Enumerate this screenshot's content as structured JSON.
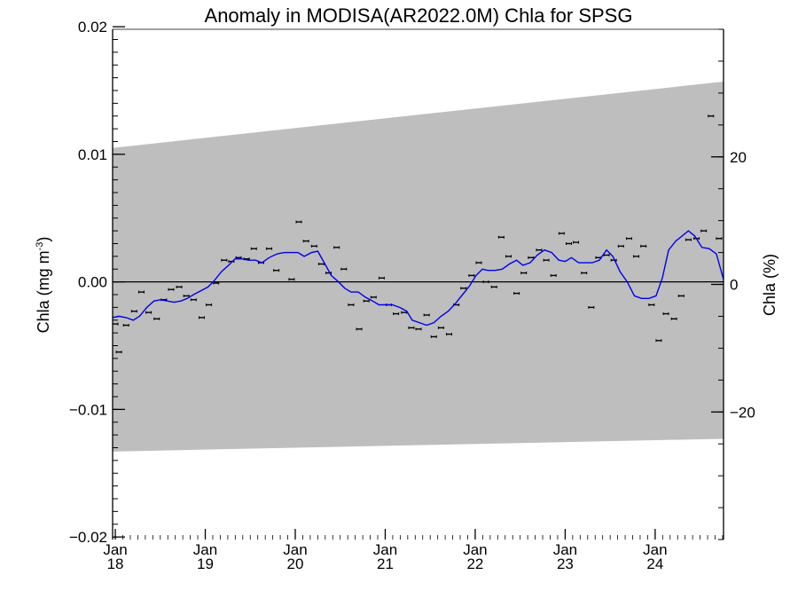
{
  "chart_data": {
    "type": "line",
    "title": "Anomaly in MODISA(AR2022.0M) Chla for SPSG",
    "ylabel_left": "Chla (mg m",
    "ylabel_left_sup": "-3",
    "ylabel_left_close": ")",
    "ylabel_right": "Chla (%)",
    "ylim_left": [
      -0.0202,
      0.0198
    ],
    "ylim_right": [
      -40,
      40
    ],
    "xlim": [
      2017.97,
      2024.76
    ],
    "yticks_left": [
      {
        "value": 0.02,
        "label": "0.02"
      },
      {
        "value": 0.01,
        "label": "0.01"
      },
      {
        "value": 0.0,
        "label": "0.00"
      },
      {
        "value": -0.01,
        "label": "−0.01"
      },
      {
        "value": -0.02,
        "label": "−0.02"
      }
    ],
    "yticks_right": [
      {
        "value": 20,
        "label": "20"
      },
      {
        "value": 0,
        "label": "0"
      },
      {
        "value": -20,
        "label": "−20"
      }
    ],
    "xticks": [
      {
        "value": 2018.0,
        "month": "Jan",
        "year": "18"
      },
      {
        "value": 2019.0,
        "month": "Jan",
        "year": "19"
      },
      {
        "value": 2020.0,
        "month": "Jan",
        "year": "20"
      },
      {
        "value": 2021.0,
        "month": "Jan",
        "year": "21"
      },
      {
        "value": 2022.0,
        "month": "Jan",
        "year": "22"
      },
      {
        "value": 2023.0,
        "month": "Jan",
        "year": "23"
      },
      {
        "value": 2024.0,
        "month": "Jan",
        "year": "24"
      }
    ],
    "uncertainty_band": {
      "upper": [
        [
          2017.97,
          0.0105
        ],
        [
          2024.76,
          0.0157
        ]
      ],
      "lower": [
        [
          2017.97,
          -0.0133
        ],
        [
          2024.76,
          -0.0123
        ]
      ]
    },
    "zero_line": 0.0,
    "series": [
      {
        "kind": "monthly_points",
        "values": [
          [
            2018.0,
            -0.0033
          ],
          [
            2018.04,
            -0.0055
          ],
          [
            2018.12,
            -0.0034
          ],
          [
            2018.21,
            -0.0023
          ],
          [
            2018.29,
            -0.0008
          ],
          [
            2018.37,
            -0.0024
          ],
          [
            2018.46,
            -0.0029
          ],
          [
            2018.54,
            -0.0014
          ],
          [
            2018.62,
            -0.0006
          ],
          [
            2018.71,
            -0.0004
          ],
          [
            2018.79,
            -0.0011
          ],
          [
            2018.87,
            -0.0014
          ],
          [
            2018.96,
            -0.0028
          ],
          [
            2019.04,
            -0.0018
          ],
          [
            2019.12,
            -0.0001
          ],
          [
            2019.21,
            0.0017
          ],
          [
            2019.29,
            0.0016
          ],
          [
            2019.37,
            0.0019
          ],
          [
            2019.46,
            0.0018
          ],
          [
            2019.54,
            0.0026
          ],
          [
            2019.62,
            0.0015
          ],
          [
            2019.71,
            0.0026
          ],
          [
            2019.79,
            0.0009
          ],
          [
            2019.96,
            0.0002
          ],
          [
            2020.04,
            0.0047
          ],
          [
            2020.12,
            0.0032
          ],
          [
            2020.21,
            0.0028
          ],
          [
            2020.29,
            0.0014
          ],
          [
            2020.37,
            0.0007
          ],
          [
            2020.46,
            0.0027
          ],
          [
            2020.54,
            0.001
          ],
          [
            2020.62,
            -0.0018
          ],
          [
            2020.71,
            -0.0037
          ],
          [
            2020.79,
            -0.0015
          ],
          [
            2020.87,
            -0.0012
          ],
          [
            2020.96,
            0.0003
          ],
          [
            2021.04,
            -0.0018
          ],
          [
            2021.12,
            -0.0025
          ],
          [
            2021.21,
            -0.0024
          ],
          [
            2021.29,
            -0.0036
          ],
          [
            2021.37,
            -0.0037
          ],
          [
            2021.46,
            -0.0026
          ],
          [
            2021.54,
            -0.0043
          ],
          [
            2021.62,
            -0.0036
          ],
          [
            2021.71,
            -0.0041
          ],
          [
            2021.79,
            -0.0018
          ],
          [
            2021.87,
            -0.0005
          ],
          [
            2021.96,
            0.0005
          ],
          [
            2022.04,
            0.0015
          ],
          [
            2022.12,
            0.0
          ],
          [
            2022.21,
            -0.0004
          ],
          [
            2022.29,
            0.0035
          ],
          [
            2022.37,
            0.002
          ],
          [
            2022.46,
            -0.0009
          ],
          [
            2022.54,
            0.0007
          ],
          [
            2022.62,
            0.0019
          ],
          [
            2022.71,
            0.0025
          ],
          [
            2022.79,
            0.0017
          ],
          [
            2022.87,
            0.0005
          ],
          [
            2022.96,
            0.0038
          ],
          [
            2023.04,
            0.003
          ],
          [
            2023.12,
            0.0031
          ],
          [
            2023.21,
            0.0007
          ],
          [
            2023.29,
            -0.002
          ],
          [
            2023.37,
            0.0019
          ],
          [
            2023.46,
            0.0021
          ],
          [
            2023.54,
            0.0017
          ],
          [
            2023.62,
            0.0028
          ],
          [
            2023.71,
            0.0034
          ],
          [
            2023.79,
            0.002
          ],
          [
            2023.87,
            0.0028
          ],
          [
            2023.96,
            -0.0018
          ],
          [
            2024.04,
            -0.0046
          ],
          [
            2024.12,
            -0.0025
          ],
          [
            2024.21,
            -0.0029
          ],
          [
            2024.29,
            -0.0011
          ],
          [
            2024.37,
            0.0033
          ],
          [
            2024.46,
            0.0034
          ],
          [
            2024.54,
            0.004
          ],
          [
            2024.62,
            0.013
          ],
          [
            2024.71,
            0.0034
          ]
        ]
      },
      {
        "kind": "running_mean",
        "color": "#0000ee",
        "values": [
          [
            2017.97,
            -0.0028
          ],
          [
            2018.04,
            -0.0027
          ],
          [
            2018.12,
            -0.0028
          ],
          [
            2018.2,
            -0.003
          ],
          [
            2018.27,
            -0.0027
          ],
          [
            2018.35,
            -0.002
          ],
          [
            2018.43,
            -0.0015
          ],
          [
            2018.5,
            -0.0014
          ],
          [
            2018.58,
            -0.0015
          ],
          [
            2018.65,
            -0.0016
          ],
          [
            2018.73,
            -0.0015
          ],
          [
            2018.8,
            -0.0013
          ],
          [
            2018.87,
            -0.001
          ],
          [
            2018.95,
            -0.0007
          ],
          [
            2019.03,
            -0.0004
          ],
          [
            2019.1,
            0.0001
          ],
          [
            2019.18,
            0.0008
          ],
          [
            2019.26,
            0.0013
          ],
          [
            2019.33,
            0.0018
          ],
          [
            2019.41,
            0.0018
          ],
          [
            2019.48,
            0.0017
          ],
          [
            2019.56,
            0.0017
          ],
          [
            2019.63,
            0.0015
          ],
          [
            2019.71,
            0.0019
          ],
          [
            2019.8,
            0.0022
          ],
          [
            2019.88,
            0.0023
          ],
          [
            2019.96,
            0.0023
          ],
          [
            2020.03,
            0.0023
          ],
          [
            2020.1,
            0.002
          ],
          [
            2020.18,
            0.0023
          ],
          [
            2020.25,
            0.0024
          ],
          [
            2020.33,
            0.0014
          ],
          [
            2020.4,
            0.0005
          ],
          [
            2020.48,
            0.0
          ],
          [
            2020.55,
            -0.0005
          ],
          [
            2020.62,
            -0.0008
          ],
          [
            2020.7,
            -0.0008
          ],
          [
            2020.78,
            -0.0012
          ],
          [
            2020.86,
            -0.0015
          ],
          [
            2020.93,
            -0.0018
          ],
          [
            2021.01,
            -0.0018
          ],
          [
            2021.08,
            -0.0018
          ],
          [
            2021.16,
            -0.002
          ],
          [
            2021.24,
            -0.0023
          ],
          [
            2021.3,
            -0.003
          ],
          [
            2021.38,
            -0.0032
          ],
          [
            2021.46,
            -0.0034
          ],
          [
            2021.54,
            -0.0032
          ],
          [
            2021.62,
            -0.0027
          ],
          [
            2021.7,
            -0.0023
          ],
          [
            2021.78,
            -0.0017
          ],
          [
            2021.86,
            -0.001
          ],
          [
            2021.94,
            -0.0003
          ],
          [
            2022.01,
            0.0005
          ],
          [
            2022.08,
            0.001
          ],
          [
            2022.14,
            0.0009
          ],
          [
            2022.22,
            0.0009
          ],
          [
            2022.3,
            0.001
          ],
          [
            2022.38,
            0.0014
          ],
          [
            2022.46,
            0.0017
          ],
          [
            2022.53,
            0.0013
          ],
          [
            2022.61,
            0.0015
          ],
          [
            2022.69,
            0.0021
          ],
          [
            2022.77,
            0.0025
          ],
          [
            2022.85,
            0.0023
          ],
          [
            2022.93,
            0.0017
          ],
          [
            2023.0,
            0.0016
          ],
          [
            2023.07,
            0.0019
          ],
          [
            2023.15,
            0.0015
          ],
          [
            2023.23,
            0.0015
          ],
          [
            2023.3,
            0.0015
          ],
          [
            2023.38,
            0.0017
          ],
          [
            2023.46,
            0.0025
          ],
          [
            2023.53,
            0.002
          ],
          [
            2023.61,
            0.0008
          ],
          [
            2023.69,
            -0.0
          ],
          [
            2023.77,
            -0.0011
          ],
          [
            2023.85,
            -0.0013
          ],
          [
            2023.93,
            -0.0013
          ],
          [
            2024.01,
            -0.0011
          ],
          [
            2024.08,
            0.0003
          ],
          [
            2024.15,
            0.0025
          ],
          [
            2024.23,
            0.0032
          ],
          [
            2024.3,
            0.0036
          ],
          [
            2024.37,
            0.004
          ],
          [
            2024.44,
            0.0036
          ],
          [
            2024.52,
            0.0027
          ],
          [
            2024.6,
            0.0026
          ],
          [
            2024.68,
            0.0022
          ],
          [
            2024.76,
            0.0002
          ]
        ]
      }
    ]
  }
}
